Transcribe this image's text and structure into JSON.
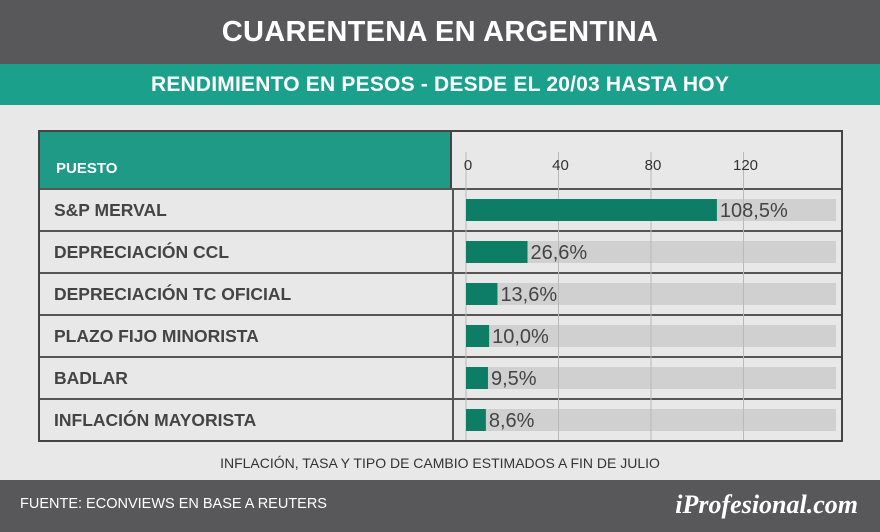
{
  "header": {
    "title": "CUARENTENA EN ARGENTINA",
    "subtitle": "RENDIMIENTO EN PESOS - DESDE EL 20/03 HASTA HOY"
  },
  "table": {
    "column_header": "PUESTO"
  },
  "chart_data": {
    "type": "bar",
    "orientation": "horizontal",
    "title": "RENDIMIENTO EN PESOS - DESDE EL 20/03 HASTA HOY",
    "categories": [
      "S&P MERVAL",
      "DEPRECIACIÓN CCL",
      "DEPRECIACIÓN TC OFICIAL",
      "PLAZO FIJO MINORISTA",
      "BADLAR",
      "INFLACIÓN MAYORISTA"
    ],
    "values": [
      108.5,
      26.6,
      13.6,
      10.0,
      9.5,
      8.6
    ],
    "value_labels": [
      "108,5%",
      "26,6%",
      "13,6%",
      "10,0%",
      "9,5%",
      "8,6%"
    ],
    "xlim": [
      0,
      160
    ],
    "ticks": [
      0,
      40,
      80,
      120
    ],
    "tick_labels": [
      "0",
      "40",
      "80",
      "120"
    ],
    "grid": true,
    "bar_color": "#0e7d66",
    "track_color": "#d0d0d0"
  },
  "footnote": "INFLACIÓN, TASA Y TIPO DE CAMBIO ESTIMADOS A FIN DE JULIO",
  "footer": {
    "source": "FUENTE: ECONVIEWS EN BASE A REUTERS",
    "brand": "iProfesional.com"
  }
}
